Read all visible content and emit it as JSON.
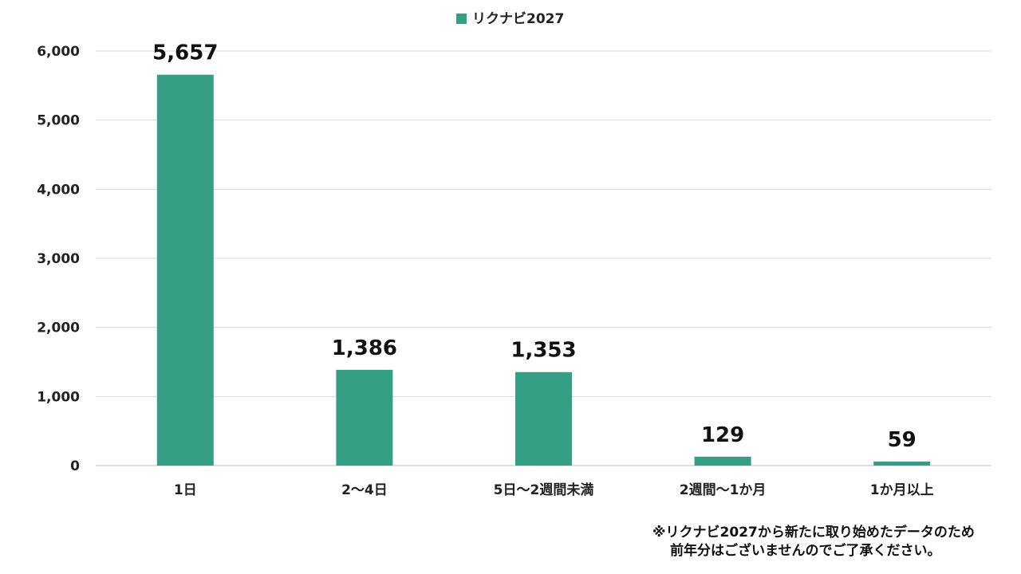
{
  "chart_data": {
    "type": "bar",
    "categories": [
      "1日",
      "2〜4日",
      "5日〜2週間未満",
      "2週間〜1か月",
      "1か月以上"
    ],
    "series": [
      {
        "name": "リクナビ2027",
        "values": [
          5657,
          1386,
          1353,
          129,
          59
        ],
        "color": "#359f85"
      }
    ],
    "data_labels": [
      "5,657",
      "1,386",
      "1,353",
      "129",
      "59"
    ],
    "y_ticks": [
      {
        "value": 0,
        "label": "0"
      },
      {
        "value": 1000,
        "label": "1,000"
      },
      {
        "value": 2000,
        "label": "2,000"
      },
      {
        "value": 3000,
        "label": "3,000"
      },
      {
        "value": 4000,
        "label": "4,000"
      },
      {
        "value": 5000,
        "label": "5,000"
      },
      {
        "value": 6000,
        "label": "6,000"
      }
    ],
    "ylim": [
      0,
      6000
    ],
    "grid": true,
    "legend_position": "top-center",
    "title": "",
    "xlabel": "",
    "ylabel": ""
  },
  "legend": {
    "label": "リクナビ2027",
    "color": "#359f85"
  },
  "colors": {
    "bar": "#359f85",
    "gridline": "#d9d9d9",
    "axis": "#bfbfbf"
  },
  "footnote": {
    "line1": "※リクナビ2027から新たに取り始めたデータのため",
    "line2": "前年分はございませんのでご了承ください。"
  }
}
